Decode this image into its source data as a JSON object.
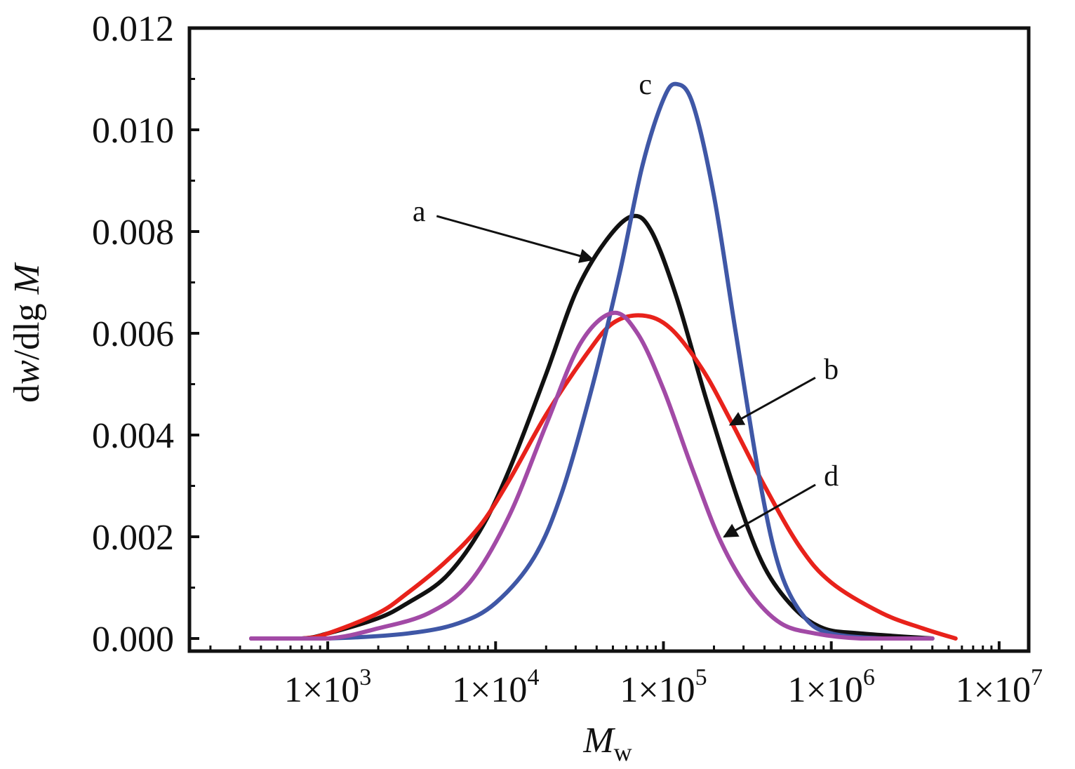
{
  "chart_data": {
    "type": "line",
    "x_scale": "log",
    "xlim": [
      150,
      15000000
    ],
    "ylim": [
      0,
      0.012
    ],
    "grid": false,
    "legend": "none",
    "xlabel": {
      "main": "M",
      "sub": "w"
    },
    "ylabel": {
      "prefix": "d",
      "w": "w",
      "mid": "/dlg ",
      "M": "M"
    },
    "y_ticks": [
      {
        "value": 0.0,
        "label": "0.000"
      },
      {
        "value": 0.002,
        "label": "0.002"
      },
      {
        "value": 0.004,
        "label": "0.004"
      },
      {
        "value": 0.006,
        "label": "0.006"
      },
      {
        "value": 0.008,
        "label": "0.008"
      },
      {
        "value": 0.01,
        "label": "0.010"
      },
      {
        "value": 0.012,
        "label": "0.012"
      }
    ],
    "x_ticks": [
      {
        "value": 1000,
        "mant": "1×10",
        "exp": "3"
      },
      {
        "value": 10000,
        "mant": "1×10",
        "exp": "4"
      },
      {
        "value": 100000,
        "mant": "1×10",
        "exp": "5"
      },
      {
        "value": 1000000,
        "mant": "1×10",
        "exp": "6"
      },
      {
        "value": 10000000,
        "mant": "1×10",
        "exp": "7"
      }
    ],
    "series": [
      {
        "label": "a",
        "color": "#111111",
        "points": [
          [
            350,
            0
          ],
          [
            700,
            0
          ],
          [
            1000,
            0.0001
          ],
          [
            2000,
            0.0004
          ],
          [
            3000,
            0.0007
          ],
          [
            5000,
            0.0012
          ],
          [
            8000,
            0.0021
          ],
          [
            12000,
            0.0033
          ],
          [
            20000,
            0.0052
          ],
          [
            30000,
            0.0068
          ],
          [
            45000,
            0.0078
          ],
          [
            65000,
            0.0083
          ],
          [
            85000,
            0.008
          ],
          [
            120000,
            0.0067
          ],
          [
            180000,
            0.0047
          ],
          [
            280000,
            0.0027
          ],
          [
            400000,
            0.0014
          ],
          [
            600000,
            0.0006
          ],
          [
            900000,
            0.0002
          ],
          [
            1500000,
            0.0001
          ],
          [
            4000000,
            0
          ]
        ]
      },
      {
        "label": "b",
        "color": "#e8221b",
        "points": [
          [
            350,
            0
          ],
          [
            700,
            0
          ],
          [
            1000,
            0.0001
          ],
          [
            2000,
            0.0005
          ],
          [
            3000,
            0.0009
          ],
          [
            5000,
            0.0015
          ],
          [
            8000,
            0.0022
          ],
          [
            12000,
            0.0031
          ],
          [
            20000,
            0.0044
          ],
          [
            35000,
            0.0056
          ],
          [
            50000,
            0.0062
          ],
          [
            75000,
            0.00635
          ],
          [
            110000,
            0.0061
          ],
          [
            170000,
            0.0053
          ],
          [
            250000,
            0.0043
          ],
          [
            400000,
            0.003
          ],
          [
            650000,
            0.0018
          ],
          [
            1000000,
            0.0011
          ],
          [
            2000000,
            0.0005
          ],
          [
            3500000,
            0.0002
          ],
          [
            5500000,
            0
          ]
        ]
      },
      {
        "label": "c",
        "color": "#3f57a6",
        "points": [
          [
            350,
            0
          ],
          [
            1000,
            0
          ],
          [
            3000,
            0.0001
          ],
          [
            6000,
            0.0003
          ],
          [
            10000,
            0.0007
          ],
          [
            17000,
            0.0016
          ],
          [
            25000,
            0.0029
          ],
          [
            38000,
            0.005
          ],
          [
            55000,
            0.0072
          ],
          [
            75000,
            0.0093
          ],
          [
            100000,
            0.0106
          ],
          [
            120000,
            0.0109
          ],
          [
            150000,
            0.0105
          ],
          [
            200000,
            0.0087
          ],
          [
            270000,
            0.006
          ],
          [
            380000,
            0.003
          ],
          [
            500000,
            0.0013
          ],
          [
            700000,
            0.0004
          ],
          [
            1000000,
            0.0001
          ],
          [
            2000000,
            0
          ],
          [
            4000000,
            0
          ]
        ]
      },
      {
        "label": "d",
        "color": "#a24aa6",
        "points": [
          [
            350,
            0
          ],
          [
            1000,
            0
          ],
          [
            2000,
            0.0002
          ],
          [
            4000,
            0.0005
          ],
          [
            7000,
            0.0011
          ],
          [
            12000,
            0.0024
          ],
          [
            20000,
            0.0042
          ],
          [
            32000,
            0.0058
          ],
          [
            50000,
            0.0064
          ],
          [
            70000,
            0.006
          ],
          [
            100000,
            0.0049
          ],
          [
            150000,
            0.0033
          ],
          [
            220000,
            0.0019
          ],
          [
            330000,
            0.0009
          ],
          [
            500000,
            0.0003
          ],
          [
            800000,
            0.0001
          ],
          [
            1500000,
            0
          ],
          [
            4000000,
            0
          ]
        ]
      }
    ],
    "annotations": [
      {
        "text": "a",
        "target": [
          38000,
          0.00745
        ],
        "text_at": [
          3500,
          0.0084
        ],
        "arrow": true
      },
      {
        "text": "b",
        "target": [
          250000,
          0.0042
        ],
        "text_at": [
          1000000,
          0.0053
        ],
        "arrow": true
      },
      {
        "text": "c",
        "target": null,
        "text_at": [
          78000,
          0.0109
        ],
        "arrow": false
      },
      {
        "text": "d",
        "target": [
          230000,
          0.002
        ],
        "text_at": [
          1000000,
          0.0032
        ],
        "arrow": true
      }
    ]
  }
}
